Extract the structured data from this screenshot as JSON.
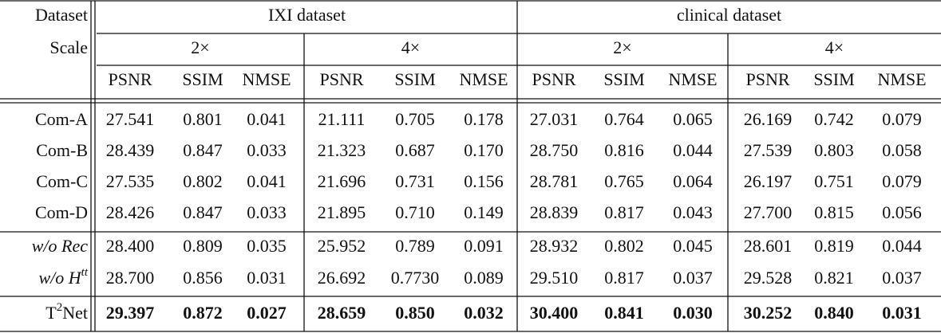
{
  "table": {
    "header": {
      "dataset_label": "Dataset",
      "scale_label": "Scale",
      "groups": [
        {
          "name": "IXI dataset",
          "scales": [
            "2×",
            "4×"
          ]
        },
        {
          "name": "clinical dataset",
          "scales": [
            "2×",
            "4×"
          ]
        }
      ],
      "metrics": [
        "PSNR",
        "SSIM",
        "NMSE"
      ]
    },
    "rows": [
      {
        "label": [
          {
            "text": "Com-A"
          }
        ],
        "values": [
          "27.541",
          "0.801",
          "0.041",
          "21.111",
          "0.705",
          "0.178",
          "27.031",
          "0.764",
          "0.065",
          "26.169",
          "0.742",
          "0.079"
        ]
      },
      {
        "label": [
          {
            "text": "Com-B"
          }
        ],
        "values": [
          "28.439",
          "0.847",
          "0.033",
          "21.323",
          "0.687",
          "0.170",
          "28.750",
          "0.816",
          "0.044",
          "27.539",
          "0.803",
          "0.058"
        ]
      },
      {
        "label": [
          {
            "text": "Com-C"
          }
        ],
        "values": [
          "27.535",
          "0.802",
          "0.041",
          "21.696",
          "0.731",
          "0.156",
          "28.781",
          "0.765",
          "0.064",
          "26.197",
          "0.751",
          "0.079"
        ]
      },
      {
        "label": [
          {
            "text": "Com-D"
          }
        ],
        "values": [
          "28.426",
          "0.847",
          "0.033",
          "21.895",
          "0.710",
          "0.149",
          "28.839",
          "0.817",
          "0.043",
          "27.700",
          "0.815",
          "0.056"
        ]
      },
      {
        "label": [
          {
            "text": "w/o Rec",
            "italic": true
          }
        ],
        "values": [
          "28.400",
          "0.809",
          "0.035",
          "25.952",
          "0.789",
          "0.091",
          "28.932",
          "0.802",
          "0.045",
          "28.601",
          "0.819",
          "0.044"
        ]
      },
      {
        "label": [
          {
            "text": "w/o H",
            "italic": true
          },
          {
            "text": "tt",
            "italic": true,
            "sup": true
          }
        ],
        "values": [
          "28.700",
          "0.856",
          "0.031",
          "26.692",
          "0.7730",
          "0.089",
          "29.510",
          "0.817",
          "0.037",
          "29.528",
          "0.821",
          "0.037"
        ]
      },
      {
        "label": [
          {
            "text": "T"
          },
          {
            "text": "2",
            "sup": true
          },
          {
            "text": "Net"
          }
        ],
        "bold": true,
        "values": [
          "29.397",
          "0.872",
          "0.027",
          "28.659",
          "0.850",
          "0.032",
          "30.400",
          "0.841",
          "0.030",
          "30.252",
          "0.840",
          "0.031"
        ]
      }
    ]
  }
}
